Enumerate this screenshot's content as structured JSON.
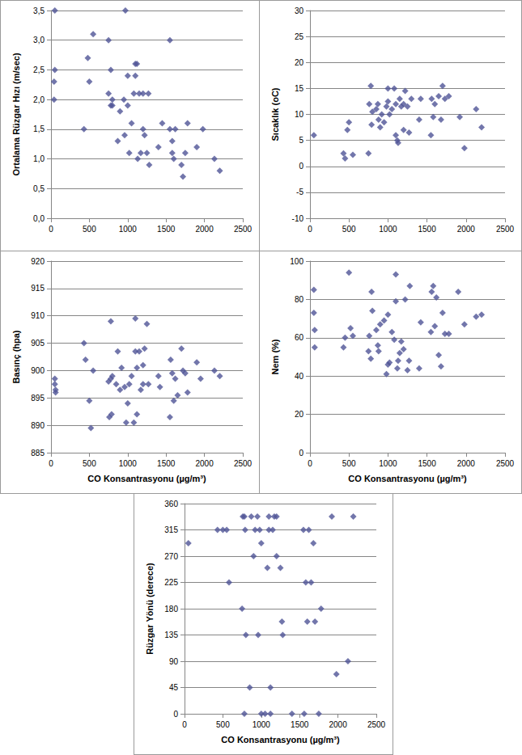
{
  "chart_data": [
    {
      "type": "scatter",
      "y_label": "Ortalama Rüzgar Hızı (m/sec)",
      "color": "#4f5496",
      "marker": "diamond",
      "grid": true,
      "xlim": [
        0,
        2500
      ],
      "xticks": [
        0,
        500,
        1000,
        1500,
        2000,
        2500
      ],
      "ylim": [
        0,
        3.5
      ],
      "yticks": [
        {
          "value": 0,
          "label": "0,0"
        },
        {
          "value": 0.5,
          "label": "0,5"
        },
        {
          "value": 1,
          "label": "1,0"
        },
        {
          "value": 1.5,
          "label": "1,5"
        },
        {
          "value": 2,
          "label": "2,0"
        },
        {
          "value": 2.5,
          "label": "2,5"
        },
        {
          "value": 3,
          "label": "3,0"
        },
        {
          "value": 3.5,
          "label": "3,5"
        }
      ],
      "x": [
        50,
        50,
        40,
        40,
        430,
        480,
        500,
        550,
        750,
        750,
        780,
        780,
        800,
        800,
        870,
        900,
        950,
        960,
        970,
        1000,
        1000,
        1020,
        1050,
        1080,
        1100,
        1100,
        1120,
        1130,
        1150,
        1170,
        1200,
        1200,
        1220,
        1250,
        1270,
        1280,
        1400,
        1450,
        1550,
        1550,
        1580,
        1580,
        1600,
        1620,
        1700,
        1720,
        1750,
        1780,
        1900,
        1980,
        2130,
        2200
      ],
      "values": [
        3.5,
        2.5,
        2.3,
        2.0,
        1.5,
        2.7,
        2.3,
        3.1,
        3.0,
        2.1,
        1.9,
        2.5,
        1.9,
        2.0,
        1.3,
        1.8,
        2.0,
        1.4,
        3.5,
        1.9,
        2.4,
        1.1,
        1.6,
        2.1,
        2.4,
        2.6,
        2.6,
        1.0,
        2.1,
        1.1,
        2.1,
        1.5,
        1.4,
        1.1,
        2.1,
        0.9,
        1.2,
        1.6,
        3.0,
        1.5,
        1.1,
        1.3,
        1.0,
        1.5,
        0.9,
        0.7,
        1.1,
        1.6,
        1.2,
        1.5,
        1.0,
        0.8
      ]
    },
    {
      "type": "scatter",
      "y_label": "Sıcaklık (oC)",
      "color": "#4f5496",
      "marker": "diamond",
      "grid": true,
      "xlim": [
        0,
        2500
      ],
      "xticks": [
        0,
        500,
        1000,
        1500,
        2000,
        2500
      ],
      "ylim": [
        -10,
        30
      ],
      "yticks": [
        -10,
        -5,
        0,
        5,
        10,
        15,
        20,
        25,
        30
      ],
      "x": [
        50,
        430,
        450,
        480,
        500,
        550,
        750,
        760,
        780,
        790,
        800,
        850,
        870,
        880,
        900,
        920,
        950,
        980,
        1000,
        1000,
        1020,
        1050,
        1080,
        1100,
        1100,
        1120,
        1130,
        1150,
        1170,
        1200,
        1200,
        1220,
        1250,
        1270,
        1300,
        1400,
        1420,
        1550,
        1560,
        1580,
        1600,
        1650,
        1680,
        1700,
        1730,
        1780,
        1920,
        1980,
        2130,
        2200
      ],
      "values": [
        6,
        2.5,
        1.5,
        7,
        8.5,
        2.2,
        2.5,
        12,
        15.5,
        8,
        10.5,
        11,
        12,
        9,
        7.5,
        10,
        8.5,
        11.5,
        12.5,
        15,
        10,
        11,
        15,
        6,
        12,
        5,
        4.5,
        13,
        11.5,
        12,
        7,
        14.5,
        11.5,
        6.5,
        13,
        9,
        13,
        6,
        13,
        9.5,
        12,
        13.5,
        9,
        15.5,
        13,
        13.5,
        9.5,
        3.5,
        11,
        7.5
      ]
    },
    {
      "type": "scatter",
      "x_label": "CO Konsantrasyonu (µg/m³)",
      "y_label": "Basınç (hpa)",
      "color": "#4f5496",
      "marker": "diamond",
      "grid": true,
      "xlim": [
        0,
        2500
      ],
      "xticks": [
        0,
        500,
        1000,
        1500,
        2000,
        2500
      ],
      "ylim": [
        885,
        920
      ],
      "yticks": [
        885,
        890,
        895,
        900,
        905,
        910,
        915,
        920
      ],
      "x": [
        50,
        50,
        60,
        60,
        430,
        450,
        500,
        520,
        550,
        750,
        760,
        780,
        780,
        790,
        800,
        850,
        870,
        900,
        920,
        960,
        980,
        1000,
        1020,
        1050,
        1080,
        1100,
        1100,
        1120,
        1120,
        1150,
        1170,
        1200,
        1200,
        1220,
        1250,
        1270,
        1400,
        1420,
        1550,
        1560,
        1580,
        1600,
        1620,
        1650,
        1700,
        1720,
        1750,
        1780,
        1900,
        1950,
        2130,
        2200
      ],
      "values": [
        898.5,
        897.5,
        896.5,
        896,
        905,
        902,
        894.5,
        889.5,
        900,
        898,
        891.5,
        909,
        898.5,
        892,
        899,
        897.5,
        903.5,
        896.5,
        900.5,
        897,
        890.5,
        894,
        897.5,
        899,
        890.5,
        903.5,
        909.5,
        892,
        900.5,
        903.5,
        896.5,
        901,
        897.5,
        904,
        908.5,
        897.5,
        899,
        897,
        891.5,
        902,
        899.5,
        894.5,
        898.5,
        895.5,
        904,
        900,
        899.5,
        896,
        901.5,
        898.5,
        900,
        899
      ]
    },
    {
      "type": "scatter",
      "x_label": "CO Konsantrasyonu (µg/m³)",
      "y_label": "Nem (%)",
      "color": "#4f5496",
      "marker": "diamond",
      "grid": true,
      "xlim": [
        0,
        2500
      ],
      "xticks": [
        0,
        500,
        1000,
        1500,
        2000,
        2500
      ],
      "ylim": [
        0,
        100
      ],
      "yticks": [
        0,
        20,
        40,
        60,
        80,
        100
      ],
      "x": [
        50,
        50,
        60,
        60,
        430,
        450,
        500,
        520,
        550,
        750,
        760,
        780,
        790,
        800,
        850,
        870,
        880,
        900,
        950,
        980,
        1000,
        1000,
        1020,
        1050,
        1080,
        1100,
        1100,
        1120,
        1130,
        1150,
        1170,
        1200,
        1220,
        1250,
        1270,
        1280,
        1400,
        1420,
        1550,
        1560,
        1580,
        1600,
        1620,
        1650,
        1680,
        1700,
        1730,
        1780,
        1900,
        1980,
        2130,
        2200
      ],
      "values": [
        85,
        73,
        64,
        55,
        55,
        60,
        94,
        65,
        61,
        53,
        61,
        49,
        84,
        74,
        64,
        56,
        53,
        67,
        69,
        41,
        46,
        72,
        47,
        63,
        59,
        93,
        79,
        44,
        48,
        52,
        58,
        54,
        80,
        43,
        48,
        87,
        44,
        68,
        63,
        84,
        87,
        66,
        81,
        51,
        45,
        73,
        62,
        62,
        84,
        67,
        71,
        72
      ]
    },
    {
      "type": "scatter",
      "x_label": "CO Konsantrasyonu (µg/m³)",
      "y_label": "Rüzgar Yönü (derece)",
      "color": "#4f5496",
      "marker": "diamond",
      "grid": true,
      "xlim": [
        0,
        2500
      ],
      "xticks": [
        0,
        500,
        1000,
        1500,
        2000,
        2500
      ],
      "ylim": [
        0,
        360
      ],
      "yticks": [
        0,
        45,
        90,
        135,
        180,
        225,
        270,
        315,
        360
      ],
      "x": [
        50,
        430,
        500,
        550,
        580,
        750,
        760,
        780,
        780,
        790,
        800,
        850,
        870,
        900,
        920,
        950,
        960,
        980,
        1000,
        1000,
        1050,
        1080,
        1100,
        1100,
        1120,
        1120,
        1150,
        1170,
        1200,
        1200,
        1250,
        1270,
        1280,
        1400,
        1550,
        1560,
        1580,
        1600,
        1620,
        1650,
        1680,
        1700,
        1750,
        1780,
        1920,
        1980,
        2130,
        2200
      ],
      "values": [
        292,
        315,
        315,
        315,
        225,
        180,
        338,
        338,
        0,
        315,
        135,
        45,
        338,
        270,
        315,
        338,
        135,
        315,
        292,
        0,
        0,
        250,
        315,
        338,
        0,
        45,
        315,
        338,
        270,
        338,
        250,
        158,
        135,
        0,
        315,
        0,
        225,
        158,
        315,
        225,
        292,
        158,
        0,
        180,
        338,
        68,
        90,
        338
      ]
    }
  ]
}
